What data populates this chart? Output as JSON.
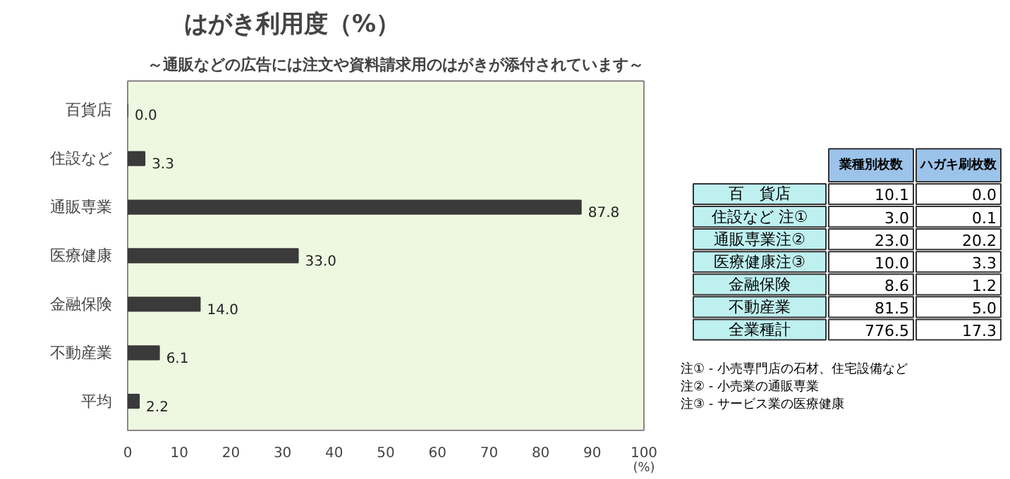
{
  "chart_data": [
    {
      "type": "bar",
      "orientation": "horizontal",
      "title": "はがき利用度（%）",
      "subtitle": "～通販などの広告には注文や資料請求用のはがきが添付されています～",
      "xlabel": "(%)",
      "categories": [
        "百貨店",
        "住設など",
        "通販専業",
        "医療健康",
        "金融保険",
        "不動産業",
        "平均"
      ],
      "values": [
        0.0,
        3.3,
        87.8,
        33.0,
        14.0,
        6.1,
        2.2
      ],
      "color": "#3a3a3a",
      "value_labels": [
        "0.0",
        "3.3",
        "87.8",
        "33.0",
        "14.0",
        "6.1",
        "2.2"
      ],
      "xlim": [
        0,
        100
      ],
      "xticks": [
        0,
        10,
        20,
        30,
        40,
        50,
        60,
        70,
        80,
        90,
        100
      ],
      "grid": false
    },
    {
      "type": "other",
      "categories": [
        "百　貨店",
        "住設など 注①",
        "通販専業注②",
        "医療健康注③",
        "金融保険",
        "不動産業",
        "全業種計"
      ],
      "series": [
        {
          "name": "業種別枚数",
          "values": [
            10.1,
            3.0,
            23.0,
            10.0,
            8.6,
            81.5,
            776.5
          ],
          "value_labels": [
            "10.1",
            "3.0",
            "23.0",
            "10.0",
            "8.6",
            "81.5",
            "776.5"
          ]
        },
        {
          "name": "ハガキ刷枚数",
          "values": [
            0.0,
            0.1,
            20.2,
            3.3,
            1.2,
            5.0,
            17.3
          ],
          "value_labels": [
            "0.0",
            "0.1",
            "20.2",
            "3.3",
            "1.2",
            "5.0",
            "17.3"
          ]
        }
      ],
      "annotations": [
        "注① - 小売専門店の石材、住宅設備など",
        "注② - 小売業の通販専業",
        "注③ - サービス業の医療健康"
      ]
    }
  ]
}
